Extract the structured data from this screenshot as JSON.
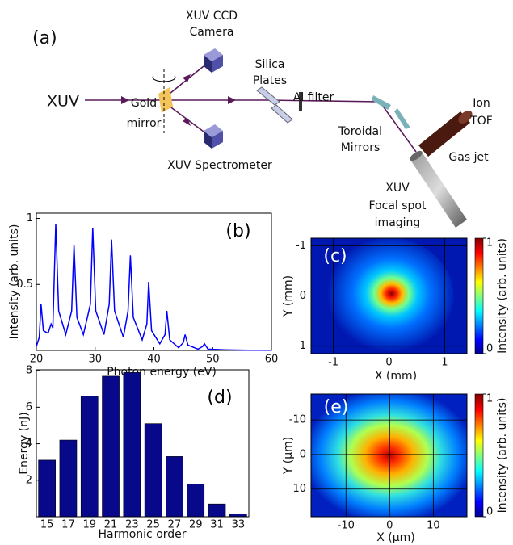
{
  "diagram": {
    "panel": "(a)",
    "labels": [
      "XUV CCD",
      "Camera",
      "XUV",
      "Gold",
      "mirror",
      "Silica",
      "Plates",
      "Al filter",
      "XUV Spectrometer",
      "Toroidal",
      "Mirrors",
      "Ion",
      "TOF",
      "Gas jet",
      "XUV",
      "Focal spot",
      "imaging"
    ]
  },
  "chart_data": [
    {
      "type": "line",
      "annotation": "(b)",
      "xlabel": "Photon energy (eV)",
      "ylabel": "Intensity (arb. units)",
      "color": "#0000ff",
      "x": [
        20,
        20.5,
        20.8,
        21.2,
        22,
        22.5,
        22.8,
        23.3,
        23.8,
        25,
        26,
        26.4,
        26.9,
        28,
        29.2,
        29.6,
        30.1,
        31.5,
        32.4,
        32.8,
        33.3,
        34.8,
        35.6,
        36,
        36.5,
        38,
        38.8,
        39.1,
        39.6,
        41,
        41.9,
        42.2,
        42.7,
        44.2,
        45,
        45.3,
        45.8,
        47.5,
        48.3,
        48.6,
        49.2,
        52,
        56,
        60
      ],
      "values": [
        0.03,
        0.1,
        0.35,
        0.15,
        0.13,
        0.2,
        0.17,
        0.96,
        0.3,
        0.12,
        0.3,
        0.8,
        0.25,
        0.12,
        0.35,
        0.93,
        0.3,
        0.12,
        0.35,
        0.84,
        0.3,
        0.1,
        0.3,
        0.72,
        0.25,
        0.08,
        0.2,
        0.52,
        0.15,
        0.05,
        0.12,
        0.3,
        0.08,
        0.02,
        0.06,
        0.12,
        0.04,
        0.01,
        0.03,
        0.05,
        0.01,
        0.005,
        0.002,
        0.002
      ],
      "xlim": [
        20,
        60
      ],
      "ylim": [
        0,
        1.04
      ],
      "xticks": [
        20,
        30,
        40,
        50,
        60
      ],
      "yticks": [
        0.5,
        1
      ]
    },
    {
      "type": "heatmap",
      "annotation": "(c)",
      "xlabel": "X (mm)",
      "ylabel": "Y (mm)",
      "colormap": "jet",
      "grid": true,
      "xlim": [
        -1.4,
        1.4
      ],
      "ylim": [
        1.15,
        -1.15
      ],
      "xticks": [
        -1,
        0,
        1
      ],
      "yticks": [
        -1,
        0,
        1
      ],
      "colorbar": {
        "label": "Intensity (arb. units)",
        "lim": [
          0,
          1
        ],
        "ticks": [
          0,
          1
        ]
      }
    },
    {
      "type": "bar",
      "annotation": "(d)",
      "xlabel": "Harmonic order",
      "ylabel": "Energy (nJ)",
      "color": "#08088a",
      "categories": [
        "15",
        "17",
        "19",
        "21",
        "23",
        "25",
        "27",
        "29",
        "31",
        "33"
      ],
      "values": [
        3.1,
        4.2,
        6.6,
        7.7,
        7.9,
        5.1,
        3.3,
        1.8,
        0.7,
        0.15
      ],
      "ylim": [
        0,
        8.05
      ],
      "yticks": [
        2,
        4,
        6,
        8
      ]
    },
    {
      "type": "heatmap",
      "annotation": "(e)",
      "xlabel": "X (µm)",
      "ylabel": "Y (µm)",
      "colormap": "jet",
      "grid": true,
      "xlim": [
        -18,
        17.7
      ],
      "ylim": [
        18,
        -17.5
      ],
      "xticks": [
        -10,
        0,
        10
      ],
      "yticks": [
        -10,
        0,
        10
      ],
      "colorbar": {
        "label": "Intensity (arb. units)",
        "lim": [
          0,
          1
        ],
        "ticks": [
          0,
          1
        ]
      }
    }
  ]
}
